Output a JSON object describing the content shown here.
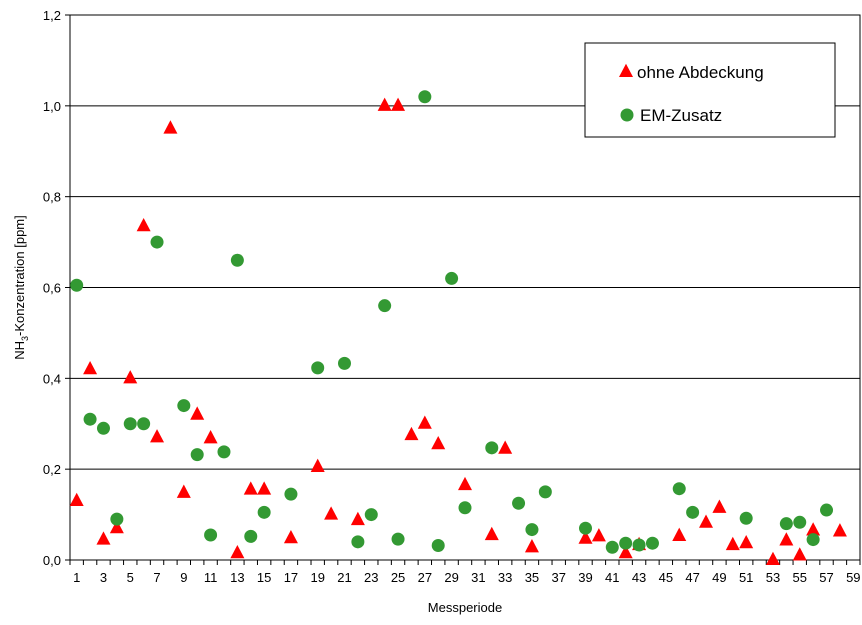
{
  "chart_data": {
    "type": "scatter",
    "xlabel": "Messperiode",
    "ylabel_main": "NH",
    "ylabel_sub": "3",
    "ylabel_rest": "-Konzentration [ppm]",
    "xlim": [
      0.5,
      59.5
    ],
    "ylim": [
      0,
      1.2
    ],
    "x_ticks": [
      1,
      3,
      5,
      7,
      9,
      11,
      13,
      15,
      17,
      19,
      21,
      23,
      25,
      27,
      29,
      31,
      33,
      35,
      37,
      39,
      41,
      43,
      45,
      47,
      49,
      51,
      53,
      55,
      57,
      59
    ],
    "y_ticks": [
      "0,0",
      "0,2",
      "0,4",
      "0,6",
      "0,8",
      "1,0",
      "1,2"
    ],
    "y_tick_values": [
      0,
      0.2,
      0.4,
      0.6,
      0.8,
      1.0,
      1.2
    ],
    "grid": "horizontal",
    "legend_position": "top-right",
    "series": [
      {
        "name": "ohne Abdeckung",
        "marker": "triangle",
        "color": "#ff0000",
        "points": [
          [
            1,
            0.13
          ],
          [
            2,
            0.42
          ],
          [
            3,
            0.045
          ],
          [
            4,
            0.07
          ],
          [
            5,
            0.4
          ],
          [
            6,
            0.735
          ],
          [
            7,
            0.27
          ],
          [
            8,
            0.95
          ],
          [
            9,
            0.148
          ],
          [
            10,
            0.32
          ],
          [
            11,
            0.268
          ],
          [
            13,
            0.015
          ],
          [
            14,
            0.155
          ],
          [
            15,
            0.155
          ],
          [
            17,
            0.048
          ],
          [
            19,
            0.205
          ],
          [
            20,
            0.1
          ],
          [
            22,
            0.088
          ],
          [
            24,
            1.0
          ],
          [
            25,
            1.0
          ],
          [
            26,
            0.275
          ],
          [
            27,
            0.3
          ],
          [
            28,
            0.255
          ],
          [
            30,
            0.165
          ],
          [
            32,
            0.055
          ],
          [
            33,
            0.245
          ],
          [
            35,
            0.028
          ],
          [
            39,
            0.047
          ],
          [
            40,
            0.052
          ],
          [
            42,
            0.015
          ],
          [
            43,
            0.033
          ],
          [
            46,
            0.053
          ],
          [
            48,
            0.082
          ],
          [
            49,
            0.115
          ],
          [
            50,
            0.033
          ],
          [
            51,
            0.037
          ],
          [
            53,
            0.0
          ],
          [
            54,
            0.043
          ],
          [
            55,
            0.01
          ],
          [
            56,
            0.065
          ],
          [
            58,
            0.063
          ]
        ]
      },
      {
        "name": "EM-Zusatz",
        "marker": "circle",
        "color": "#339933",
        "points": [
          [
            1,
            0.605
          ],
          [
            2,
            0.31
          ],
          [
            3,
            0.29
          ],
          [
            4,
            0.09
          ],
          [
            5,
            0.3
          ],
          [
            6,
            0.3
          ],
          [
            7,
            0.7
          ],
          [
            9,
            0.34
          ],
          [
            10,
            0.232
          ],
          [
            11,
            0.055
          ],
          [
            12,
            0.238
          ],
          [
            13,
            0.66
          ],
          [
            14,
            0.052
          ],
          [
            15,
            0.105
          ],
          [
            17,
            0.145
          ],
          [
            19,
            0.423
          ],
          [
            21,
            0.433
          ],
          [
            22,
            0.04
          ],
          [
            23,
            0.1
          ],
          [
            24,
            0.56
          ],
          [
            25,
            0.046
          ],
          [
            27,
            1.02
          ],
          [
            28,
            0.032
          ],
          [
            29,
            0.62
          ],
          [
            30,
            0.115
          ],
          [
            32,
            0.247
          ],
          [
            34,
            0.125
          ],
          [
            35,
            0.067
          ],
          [
            36,
            0.15
          ],
          [
            39,
            0.07
          ],
          [
            41,
            0.028
          ],
          [
            42,
            0.037
          ],
          [
            43,
            0.033
          ],
          [
            44,
            0.037
          ],
          [
            46,
            0.157
          ],
          [
            47,
            0.105
          ],
          [
            51,
            0.092
          ],
          [
            54,
            0.08
          ],
          [
            55,
            0.083
          ],
          [
            56,
            0.045
          ],
          [
            57,
            0.11
          ]
        ]
      }
    ]
  }
}
